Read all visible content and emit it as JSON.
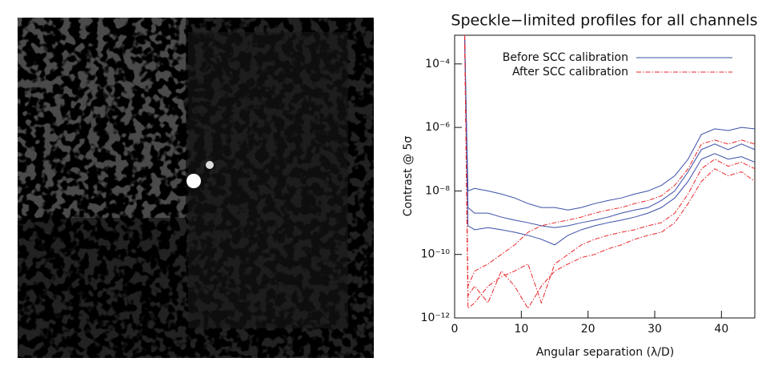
{
  "chart_data": {
    "type": "line",
    "title": "Speckle−limited profiles for all channels",
    "xlabel": "Angular separation (λ/D)",
    "ylabel": "Contrast @ 5σ",
    "log_y": true,
    "legend": "upper left",
    "xlim": [
      0,
      45
    ],
    "xticks": [
      0,
      10,
      20,
      30,
      40
    ],
    "ylim": [
      1e-12,
      0.0008
    ],
    "yticks": [
      {
        "value": 1e-12,
        "label": "10⁻¹²"
      },
      {
        "value": 1e-10,
        "label": "10⁻¹⁰"
      },
      {
        "value": 1e-08,
        "label": "10⁻⁸"
      },
      {
        "value": 1e-06,
        "label": "10⁻⁶"
      },
      {
        "value": 0.0001,
        "label": "10⁻⁴"
      }
    ],
    "x": [
      1.5,
      2,
      3,
      5,
      7,
      9,
      11,
      13,
      15,
      17,
      19,
      21,
      23,
      25,
      27,
      29,
      31,
      33,
      35,
      37,
      39,
      41,
      43,
      45
    ],
    "series": [
      {
        "name": "Before SCC calibration",
        "color": "#3a4fa8",
        "dash": "solid",
        "curves": [
          [
            0.0008,
            1e-08,
            1.2e-08,
            1e-08,
            8e-09,
            6e-09,
            4e-09,
            3e-09,
            3e-09,
            2.5e-09,
            3e-09,
            4e-09,
            5e-09,
            6e-09,
            8e-09,
            1e-08,
            1.5e-08,
            3e-08,
            1e-07,
            6e-07,
            9e-07,
            8e-07,
            1e-06,
            9e-07
          ],
          [
            0.0008,
            3e-09,
            2e-09,
            2e-09,
            1.5e-09,
            1.2e-09,
            1e-09,
            8e-10,
            7e-10,
            8e-10,
            1e-09,
            1.2e-09,
            1.5e-09,
            2e-09,
            2.5e-09,
            3e-09,
            5e-09,
            1e-08,
            4e-08,
            2e-07,
            3e-07,
            2e-07,
            3e-07,
            2e-07
          ],
          [
            0.0008,
            8e-10,
            6e-10,
            7e-10,
            6e-10,
            5e-10,
            4e-10,
            3e-10,
            2e-10,
            4e-10,
            6e-10,
            8e-10,
            1e-09,
            1.2e-09,
            1.5e-09,
            2e-09,
            3e-09,
            6e-09,
            2e-08,
            1e-07,
            1.5e-07,
            1e-07,
            1.2e-07,
            8e-08
          ]
        ]
      },
      {
        "name": "After SCC calibration",
        "color": "#e8262a",
        "dash": "dashdot",
        "curves": [
          [
            0.0008,
            1e-11,
            3e-11,
            5e-11,
            1e-10,
            2e-10,
            5e-10,
            8e-10,
            1e-09,
            1.2e-09,
            1.5e-09,
            2e-09,
            2.5e-09,
            3e-09,
            4e-09,
            5e-09,
            7e-09,
            1.5e-08,
            5e-08,
            3e-07,
            4e-07,
            3e-07,
            4e-07,
            3e-07
          ],
          [
            0.0008,
            2e-12,
            3e-12,
            1e-11,
            2e-11,
            3e-11,
            5e-11,
            3e-12,
            5e-11,
            1e-10,
            2e-10,
            3e-10,
            4e-10,
            5e-10,
            6e-10,
            8e-10,
            1e-09,
            2e-09,
            8e-09,
            5e-08,
            1e-07,
            6e-08,
            8e-08,
            5e-08
          ],
          [
            0.0008,
            5e-12,
            1e-11,
            3e-12,
            3e-11,
            1e-11,
            2e-12,
            1e-11,
            3e-11,
            5e-11,
            8e-11,
            1e-10,
            1.5e-10,
            2e-10,
            3e-10,
            4e-10,
            5e-10,
            1e-09,
            4e-09,
            2e-08,
            5e-08,
            3e-08,
            4e-08,
            2e-08
          ]
        ]
      }
    ]
  }
}
